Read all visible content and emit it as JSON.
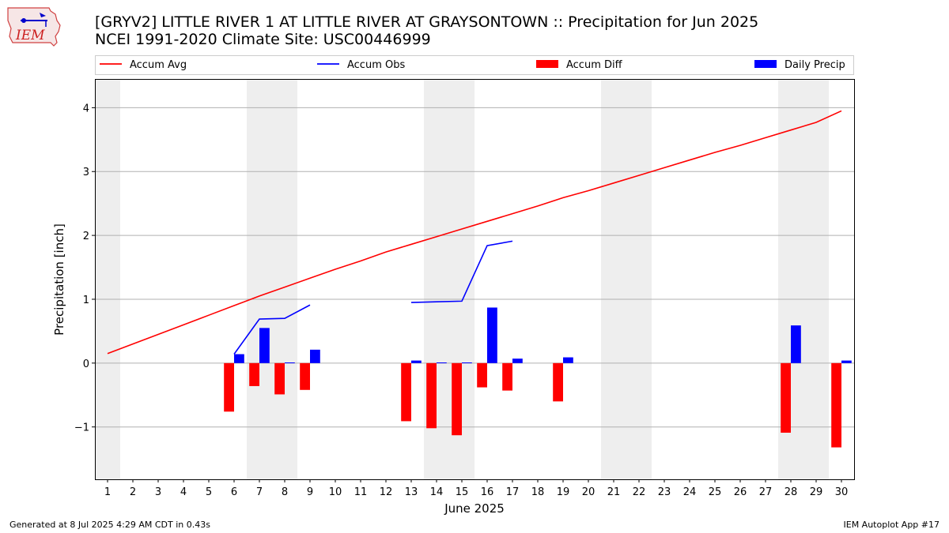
{
  "title_line1": "[GRYV2] LITTLE RIVER 1 AT LITTLE RIVER AT GRAYSONTOWN :: Precipitation for Jun 2025",
  "title_line2": "NCEI 1991-2020 Climate Site: USC00446999",
  "logo_text": "IEM",
  "footer_left": "Generated at 8 Jul 2025 4:29 AM CDT in 0.43s",
  "footer_right": "IEM Autoplot App #17",
  "colors": {
    "accum_avg": "#ff0000",
    "accum_obs": "#0000ff",
    "accum_diff": "#ff0000",
    "daily_precip": "#0000ff",
    "weekend_shade": "#eeeeee",
    "grid": "#b0b0b0"
  },
  "chart_data": {
    "type": "bar",
    "xlabel": "June 2025",
    "ylabel": "Precipitation [inch]",
    "xlim": [
      0.5,
      30.5
    ],
    "ylim": [
      -1.82,
      4.45
    ],
    "yticks": [
      -1,
      0,
      1,
      2,
      3,
      4
    ],
    "ytick_labels": [
      "−1",
      "0",
      "1",
      "2",
      "3",
      "4"
    ],
    "x": [
      1,
      2,
      3,
      4,
      5,
      6,
      7,
      8,
      9,
      10,
      11,
      12,
      13,
      14,
      15,
      16,
      17,
      18,
      19,
      20,
      21,
      22,
      23,
      24,
      25,
      26,
      27,
      28,
      29,
      30
    ],
    "grid": "horizontal",
    "legend_position": "top",
    "shaded_days": [
      1,
      7,
      8,
      14,
      15,
      21,
      22,
      28,
      29
    ],
    "series": [
      {
        "name": "Accum Avg",
        "type": "line",
        "values": [
          0.15,
          0.3,
          0.45,
          0.6,
          0.75,
          0.9,
          1.05,
          1.19,
          1.33,
          1.47,
          1.6,
          1.74,
          1.86,
          1.98,
          2.1,
          2.22,
          2.34,
          2.46,
          2.59,
          2.7,
          2.82,
          2.94,
          3.06,
          3.18,
          3.3,
          3.41,
          3.53,
          3.65,
          3.77,
          3.95
        ]
      },
      {
        "name": "Accum Obs",
        "type": "line",
        "values": [
          null,
          null,
          null,
          null,
          null,
          0.14,
          0.69,
          0.7,
          0.91,
          null,
          null,
          null,
          0.95,
          0.96,
          0.97,
          1.84,
          1.91,
          null,
          null,
          null,
          null,
          null,
          null,
          null,
          null,
          null,
          null,
          null,
          null,
          null
        ]
      },
      {
        "name": "Accum Diff",
        "type": "bar",
        "values": [
          0,
          0,
          0,
          0,
          0,
          -0.76,
          -0.36,
          -0.49,
          -0.42,
          0,
          0,
          0,
          -0.91,
          -1.02,
          -1.13,
          -0.38,
          -0.43,
          0,
          -0.6,
          0,
          0,
          0,
          0,
          0,
          0,
          0,
          0,
          -1.09,
          0,
          -1.32
        ]
      },
      {
        "name": "Daily Precip",
        "type": "bar",
        "values": [
          0,
          0,
          0,
          0,
          0,
          0.14,
          0.55,
          0.01,
          0.21,
          0,
          0,
          0,
          0.04,
          0.01,
          0.01,
          0.87,
          0.07,
          0,
          0.09,
          0,
          0,
          0,
          0,
          0,
          0,
          0,
          0,
          0.59,
          0,
          0.04
        ]
      }
    ]
  }
}
